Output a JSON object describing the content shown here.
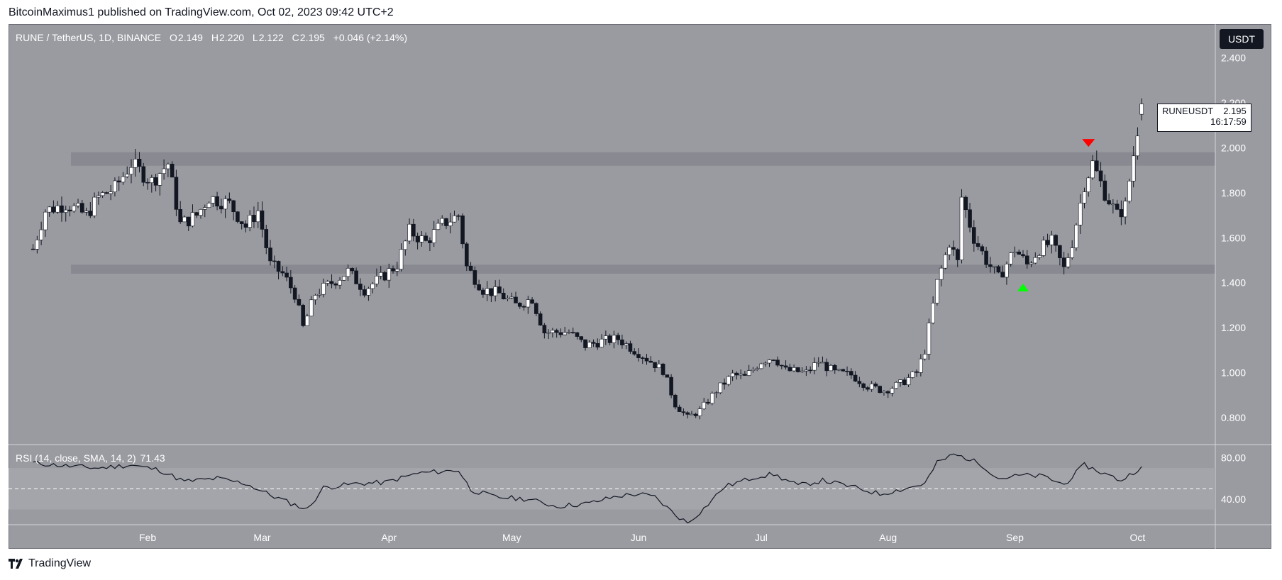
{
  "header": {
    "publisher": "BitcoinMaximus1 published on TradingView.com, Oct 02, 2023 09:42 UTC+2"
  },
  "legend": {
    "symbol": "RUNE / TetherUS, 1D, BINANCE",
    "o_label": "O",
    "o": "2.149",
    "h_label": "H",
    "h": "2.220",
    "l_label": "L",
    "l": "2.122",
    "c_label": "C",
    "c": "2.195",
    "change": "+0.046 (+2.14%)"
  },
  "currency": "USDT",
  "price_tag": {
    "symbol": "RUNEUSDT",
    "price": "2.195",
    "countdown": "16:17:59"
  },
  "rsi_legend": {
    "label": "RSI (14, close, SMA, 14, 2)",
    "value": "71.43"
  },
  "footer": {
    "brand": "TradingView"
  },
  "colors": {
    "background": "#9a9ba1",
    "zone": "#86878e",
    "bull_body": "#ffffff",
    "bear_body": "#131722",
    "wick": "#131722",
    "up_arrow": "#00ff00",
    "down_arrow": "#ff0000"
  },
  "chart_data": [
    {
      "type": "candlestick",
      "title": "RUNE / TetherUS, 1D, BINANCE",
      "ylim": [
        0.68,
        2.55
      ],
      "y_ticks": [
        "2.400",
        "2.200",
        "2.000",
        "1.800",
        "1.600",
        "1.400",
        "1.200",
        "1.000",
        "0.800"
      ],
      "x_ticks": [
        "Feb",
        "Mar",
        "Apr",
        "May",
        "Jun",
        "Jul",
        "Aug",
        "Sep",
        "Oct"
      ],
      "x_tick_dates": [
        "2023-02-01",
        "2023-03-01",
        "2023-04-01",
        "2023-05-01",
        "2023-06-01",
        "2023-07-01",
        "2023-08-01",
        "2023-09-01",
        "2023-10-01"
      ],
      "date_range": [
        "2023-01-04",
        "2023-10-02"
      ],
      "close_path": [
        [
          "2023-01-04",
          1.55
        ],
        [
          "2023-01-07",
          1.72
        ],
        [
          "2023-01-12",
          1.75
        ],
        [
          "2023-01-17",
          1.7
        ],
        [
          "2023-01-20",
          1.78
        ],
        [
          "2023-01-24",
          1.82
        ],
        [
          "2023-01-28",
          1.93
        ],
        [
          "2023-02-02",
          1.85
        ],
        [
          "2023-02-06",
          1.93
        ],
        [
          "2023-02-09",
          1.66
        ],
        [
          "2023-02-13",
          1.7
        ],
        [
          "2023-02-16",
          1.78
        ],
        [
          "2023-02-21",
          1.75
        ],
        [
          "2023-02-25",
          1.65
        ],
        [
          "2023-02-28",
          1.72
        ],
        [
          "2023-03-03",
          1.48
        ],
        [
          "2023-03-06",
          1.44
        ],
        [
          "2023-03-09",
          1.35
        ],
        [
          "2023-03-11",
          1.2
        ],
        [
          "2023-03-14",
          1.35
        ],
        [
          "2023-03-18",
          1.4
        ],
        [
          "2023-03-22",
          1.45
        ],
        [
          "2023-03-26",
          1.37
        ],
        [
          "2023-03-30",
          1.42
        ],
        [
          "2023-04-03",
          1.48
        ],
        [
          "2023-04-06",
          1.63
        ],
        [
          "2023-04-10",
          1.58
        ],
        [
          "2023-04-14",
          1.66
        ],
        [
          "2023-04-18",
          1.7
        ],
        [
          "2023-04-20",
          1.47
        ],
        [
          "2023-04-24",
          1.37
        ],
        [
          "2023-04-28",
          1.35
        ],
        [
          "2023-05-02",
          1.3
        ],
        [
          "2023-05-06",
          1.33
        ],
        [
          "2023-05-09",
          1.18
        ],
        [
          "2023-05-15",
          1.18
        ],
        [
          "2023-05-19",
          1.12
        ],
        [
          "2023-05-23",
          1.14
        ],
        [
          "2023-05-27",
          1.15
        ],
        [
          "2023-05-31",
          1.1
        ],
        [
          "2023-06-04",
          1.05
        ],
        [
          "2023-06-07",
          1.01
        ],
        [
          "2023-06-10",
          0.86
        ],
        [
          "2023-06-13",
          0.8
        ],
        [
          "2023-06-16",
          0.83
        ],
        [
          "2023-06-20",
          0.92
        ],
        [
          "2023-06-24",
          0.99
        ],
        [
          "2023-06-27",
          0.98
        ],
        [
          "2023-07-01",
          1.05
        ],
        [
          "2023-07-04",
          1.07
        ],
        [
          "2023-07-07",
          1.01
        ],
        [
          "2023-07-12",
          1.0
        ],
        [
          "2023-07-15",
          1.05
        ],
        [
          "2023-07-19",
          1.0
        ],
        [
          "2023-07-23",
          0.99
        ],
        [
          "2023-07-27",
          0.94
        ],
        [
          "2023-07-31",
          0.92
        ],
        [
          "2023-08-04",
          0.95
        ],
        [
          "2023-08-08",
          1.0
        ],
        [
          "2023-08-10",
          1.1
        ],
        [
          "2023-08-13",
          1.4
        ],
        [
          "2023-08-16",
          1.58
        ],
        [
          "2023-08-18",
          1.49
        ],
        [
          "2023-08-19",
          1.78
        ],
        [
          "2023-08-22",
          1.6
        ],
        [
          "2023-08-25",
          1.5
        ],
        [
          "2023-08-28",
          1.42
        ],
        [
          "2023-09-01",
          1.55
        ],
        [
          "2023-09-04",
          1.48
        ],
        [
          "2023-09-07",
          1.55
        ],
        [
          "2023-09-10",
          1.58
        ],
        [
          "2023-09-13",
          1.46
        ],
        [
          "2023-09-15",
          1.58
        ],
        [
          "2023-09-18",
          1.84
        ],
        [
          "2023-09-20",
          1.93
        ],
        [
          "2023-09-23",
          1.8
        ],
        [
          "2023-09-26",
          1.7
        ],
        [
          "2023-09-28",
          1.74
        ],
        [
          "2023-09-30",
          1.97
        ],
        [
          "2023-10-02",
          2.195
        ]
      ],
      "zones": [
        {
          "from": 1.92,
          "to": 1.98
        },
        {
          "from": 1.44,
          "to": 1.48
        }
      ],
      "markers": [
        {
          "date": "2023-09-03",
          "price": 1.38,
          "shape": "up-triangle"
        },
        {
          "date": "2023-09-19",
          "price": 2.02,
          "shape": "down-triangle"
        }
      ]
    },
    {
      "type": "line",
      "title": "RSI (14, close, SMA, 14, 2)",
      "ylim": [
        16,
        92
      ],
      "y_ticks": [
        "80.00",
        "40.00"
      ],
      "bands": {
        "upper": 70,
        "middle": 50,
        "lower": 30
      },
      "points": [
        [
          "2023-01-04",
          75
        ],
        [
          "2023-01-12",
          72
        ],
        [
          "2023-01-20",
          70
        ],
        [
          "2023-01-28",
          73
        ],
        [
          "2023-02-04",
          68
        ],
        [
          "2023-02-10",
          57
        ],
        [
          "2023-02-18",
          60
        ],
        [
          "2023-02-25",
          55
        ],
        [
          "2023-03-03",
          44
        ],
        [
          "2023-03-08",
          36
        ],
        [
          "2023-03-12",
          30
        ],
        [
          "2023-03-16",
          51
        ],
        [
          "2023-03-24",
          55
        ],
        [
          "2023-03-31",
          56
        ],
        [
          "2023-04-08",
          65
        ],
        [
          "2023-04-18",
          68
        ],
        [
          "2023-04-21",
          49
        ],
        [
          "2023-04-27",
          42
        ],
        [
          "2023-05-05",
          40
        ],
        [
          "2023-05-12",
          33
        ],
        [
          "2023-05-20",
          36
        ],
        [
          "2023-05-27",
          43
        ],
        [
          "2023-06-01",
          45
        ],
        [
          "2023-06-05",
          42
        ],
        [
          "2023-06-10",
          25
        ],
        [
          "2023-06-13",
          17
        ],
        [
          "2023-06-17",
          31
        ],
        [
          "2023-06-22",
          52
        ],
        [
          "2023-06-30",
          62
        ],
        [
          "2023-07-04",
          64
        ],
        [
          "2023-07-10",
          53
        ],
        [
          "2023-07-16",
          58
        ],
        [
          "2023-07-22",
          53
        ],
        [
          "2023-07-30",
          45
        ],
        [
          "2023-08-05",
          50
        ],
        [
          "2023-08-10",
          55
        ],
        [
          "2023-08-13",
          75
        ],
        [
          "2023-08-17",
          83
        ],
        [
          "2023-08-20",
          80
        ],
        [
          "2023-08-24",
          73
        ],
        [
          "2023-08-28",
          60
        ],
        [
          "2023-09-03",
          63
        ],
        [
          "2023-09-08",
          62
        ],
        [
          "2023-09-13",
          54
        ],
        [
          "2023-09-18",
          73
        ],
        [
          "2023-09-22",
          66
        ],
        [
          "2023-09-27",
          58
        ],
        [
          "2023-10-02",
          71.43
        ]
      ]
    }
  ]
}
